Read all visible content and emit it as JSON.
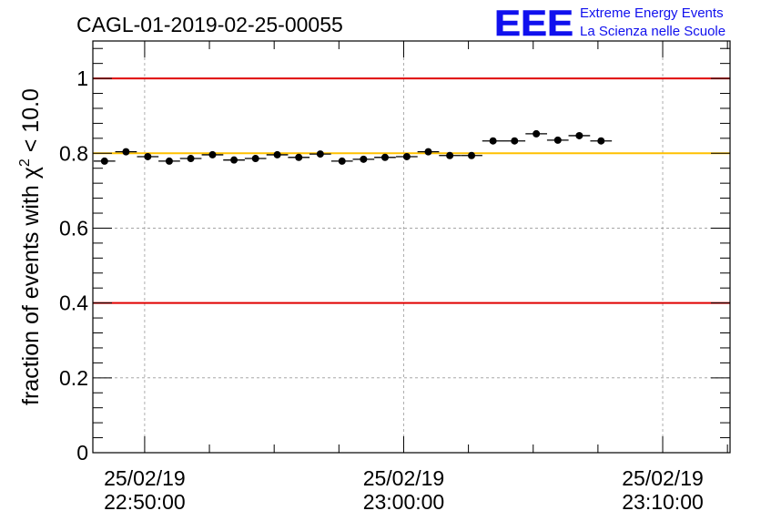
{
  "chart_data": {
    "type": "scatter",
    "title": "CAGL-01-2019-02-25-00055",
    "ylabel_text": "fraction of events with",
    "ylabel_chi": "χ",
    "ylabel_sup": "2",
    "ylabel_tail": " < 10.0",
    "xlabel": "",
    "ylim": [
      0,
      1.1
    ],
    "xlim_minutes": [
      -7.0,
      17.6
    ],
    "y_ticks": [
      {
        "value": 0,
        "label": "0"
      },
      {
        "value": 0.2,
        "label": "0.2"
      },
      {
        "value": 0.4,
        "label": "0.4"
      },
      {
        "value": 0.6,
        "label": "0.6"
      },
      {
        "value": 0.8,
        "label": "0.8"
      },
      {
        "value": 1.0,
        "label": "1"
      }
    ],
    "x_ticks": [
      {
        "minute": -5,
        "date": "25/02/19",
        "time": "22:50:00"
      },
      {
        "minute": 5,
        "date": "25/02/19",
        "time": "23:00:00"
      },
      {
        "minute": 15,
        "date": "25/02/19",
        "time": "23:10:00"
      }
    ],
    "reference_lines": [
      {
        "value": 1.0,
        "color": "#e00000"
      },
      {
        "value": 0.4,
        "color": "#e00000"
      },
      {
        "value": 0.8,
        "color": "#ffc000"
      }
    ],
    "bin_width_minutes": 0.833,
    "x_unit": "minutes after 22:55:00",
    "points": [
      {
        "x": -6.55,
        "y": 0.779
      },
      {
        "x": -5.72,
        "y": 0.804
      },
      {
        "x": -4.88,
        "y": 0.791
      },
      {
        "x": -4.05,
        "y": 0.779
      },
      {
        "x": -3.22,
        "y": 0.786
      },
      {
        "x": -2.38,
        "y": 0.796
      },
      {
        "x": -1.55,
        "y": 0.782
      },
      {
        "x": -0.72,
        "y": 0.786
      },
      {
        "x": 0.12,
        "y": 0.796
      },
      {
        "x": 0.95,
        "y": 0.789
      },
      {
        "x": 1.78,
        "y": 0.798
      },
      {
        "x": 2.62,
        "y": 0.779
      },
      {
        "x": 3.45,
        "y": 0.784
      },
      {
        "x": 4.28,
        "y": 0.789
      },
      {
        "x": 5.12,
        "y": 0.791
      },
      {
        "x": 5.95,
        "y": 0.804
      },
      {
        "x": 6.78,
        "y": 0.794
      },
      {
        "x": 7.62,
        "y": 0.794
      },
      {
        "x": 8.45,
        "y": 0.833
      },
      {
        "x": 9.28,
        "y": 0.833
      },
      {
        "x": 10.12,
        "y": 0.852
      },
      {
        "x": 10.95,
        "y": 0.835
      },
      {
        "x": 11.78,
        "y": 0.847
      },
      {
        "x": 12.62,
        "y": 0.833
      }
    ],
    "grid": true,
    "legend": "none"
  },
  "logo": {
    "mark": "EEE",
    "line1": "Extreme Energy Events",
    "line2": "La Scienza nelle Scuole",
    "color": "#1010ee"
  }
}
